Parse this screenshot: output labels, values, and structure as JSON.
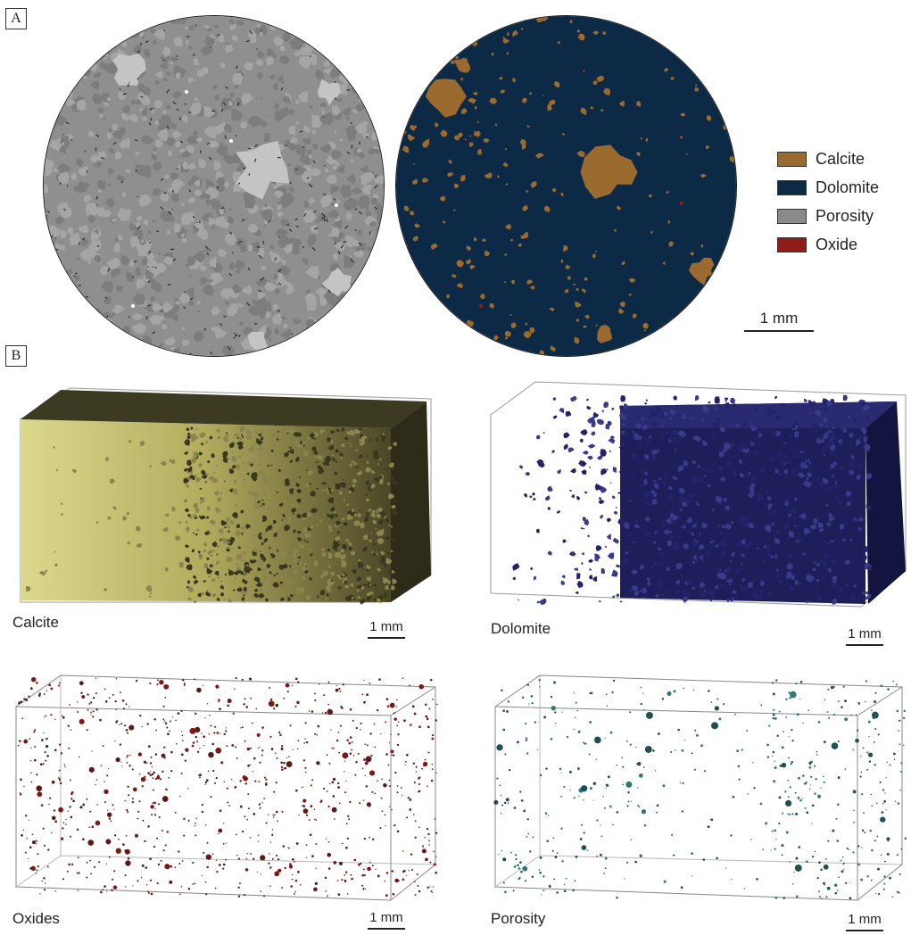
{
  "panels": {
    "a": "A",
    "b": "B"
  },
  "legend": {
    "items": [
      {
        "label": "Calcite",
        "color": "#9a6a2e"
      },
      {
        "label": "Dolomite",
        "color": "#0c2a45"
      },
      {
        "label": "Porosity",
        "color": "#8a8a8a"
      },
      {
        "label": "Oxide",
        "color": "#8e1c18"
      }
    ]
  },
  "scale_label": "1 mm",
  "renders": {
    "calcite": {
      "caption": "Calcite",
      "scale": "1 mm"
    },
    "dolomite": {
      "caption": "Dolomite",
      "scale": "1 mm"
    },
    "oxides": {
      "caption": "Oxides",
      "scale": "1 mm"
    },
    "porosity": {
      "caption": "Porosity",
      "scale": "1 mm"
    }
  }
}
